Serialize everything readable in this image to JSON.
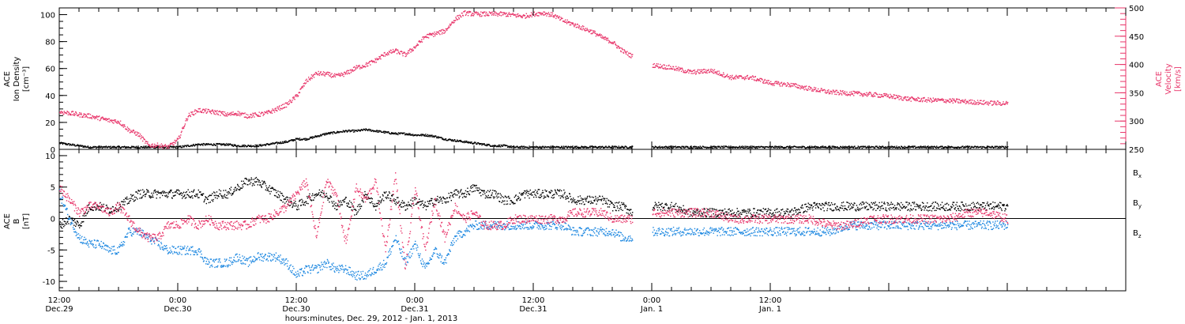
{
  "chart_data": [
    {
      "type": "scatter",
      "panel": "top",
      "ylabel_lines": [
        "ACE",
        "Ion Density",
        "[cm⁻³]"
      ],
      "ylabel_right_lines": [
        "ACE",
        "Velocity",
        "[km/s]"
      ],
      "ylim": [
        0,
        105
      ],
      "ylim_right": [
        250,
        500
      ],
      "yticks_left": [
        "0",
        "20",
        "40",
        "60",
        "80",
        "100"
      ],
      "yticks_right": [
        "250",
        "300",
        "350",
        "400",
        "450",
        "500"
      ],
      "right_axis_color": "#e8356a",
      "gap": [
        58,
        60
      ],
      "series": [
        {
          "name": "Ion Density",
          "axis": "left",
          "color": "#000000",
          "x": [
            0,
            1,
            2,
            3,
            4,
            5,
            6,
            7,
            8,
            9,
            10,
            11,
            12,
            13,
            14,
            15,
            16,
            17,
            18,
            19,
            20,
            21,
            22,
            23,
            24,
            25,
            26,
            27,
            28,
            29,
            30,
            31,
            32,
            33,
            34,
            35,
            36,
            37,
            38,
            39,
            40,
            41,
            42,
            43,
            44,
            45,
            46,
            47,
            48,
            49,
            50,
            51,
            52,
            53,
            54,
            55,
            56,
            57,
            58,
            60,
            62,
            66,
            70,
            74,
            78,
            82,
            86,
            90,
            94,
            96
          ],
          "y": [
            5,
            4,
            3,
            2,
            2,
            2,
            2,
            2,
            2,
            2,
            2,
            2,
            2,
            3,
            4,
            4,
            4,
            4,
            3,
            3,
            3,
            4,
            5,
            6,
            8,
            8,
            10,
            12,
            13,
            14,
            14,
            15,
            14,
            13,
            12,
            12,
            11,
            11,
            10,
            8,
            7,
            6,
            5,
            4,
            3,
            3,
            2,
            2,
            2,
            2,
            2,
            2,
            2,
            2,
            2,
            2,
            2,
            2,
            2,
            2,
            2,
            2,
            2,
            2,
            2,
            2,
            2,
            2,
            2,
            2
          ]
        },
        {
          "name": "Velocity",
          "axis": "right",
          "color": "#e8356a",
          "x": [
            0,
            1,
            2,
            3,
            4,
            5,
            6,
            7,
            8,
            9,
            10,
            11,
            12,
            13,
            14,
            15,
            16,
            17,
            18,
            19,
            20,
            21,
            22,
            23,
            24,
            25,
            26,
            27,
            28,
            29,
            30,
            31,
            32,
            33,
            34,
            35,
            36,
            37,
            38,
            39,
            40,
            41,
            42,
            43,
            44,
            45,
            46,
            47,
            48,
            49,
            50,
            51,
            52,
            53,
            54,
            55,
            56,
            57,
            58,
            60,
            62,
            64,
            66,
            68,
            70,
            72,
            74,
            76,
            78,
            80,
            82,
            84,
            86,
            88,
            90,
            92,
            94,
            96
          ],
          "y": [
            317,
            315,
            312,
            310,
            306,
            302,
            300,
            285,
            277,
            258,
            258,
            255,
            268,
            310,
            320,
            318,
            316,
            312,
            315,
            310,
            312,
            315,
            322,
            330,
            345,
            372,
            385,
            384,
            380,
            385,
            395,
            400,
            408,
            420,
            425,
            418,
            432,
            450,
            455,
            460,
            480,
            492,
            490,
            490,
            490,
            490,
            488,
            486,
            490,
            492,
            488,
            478,
            472,
            465,
            458,
            448,
            440,
            425,
            415,
            400,
            395,
            387,
            390,
            378,
            378,
            368,
            365,
            358,
            352,
            350,
            348,
            345,
            340,
            338,
            337,
            335,
            333,
            332
          ]
        }
      ]
    },
    {
      "type": "scatter",
      "panel": "bottom",
      "ylabel_lines": [
        "ACE",
        "B",
        "[nT]"
      ],
      "ylim": [
        -11.5,
        11
      ],
      "yticks": [
        "-10",
        "-5",
        "0",
        "5",
        "10"
      ],
      "zero_line": true,
      "gap": [
        58,
        60
      ],
      "legend_position": "right",
      "series": [
        {
          "name": "Bx",
          "label": "B",
          "sub": "x",
          "color": "#000000",
          "x": [
            0,
            1,
            2,
            3,
            4,
            5,
            6,
            7,
            8,
            9,
            10,
            11,
            12,
            13,
            14,
            15,
            16,
            17,
            18,
            19,
            20,
            21,
            22,
            23,
            24,
            25,
            26,
            27,
            28,
            29,
            30,
            31,
            32,
            33,
            34,
            35,
            36,
            37,
            38,
            39,
            40,
            41,
            42,
            43,
            44,
            45,
            46,
            47,
            48,
            49,
            50,
            51,
            52,
            53,
            54,
            55,
            56,
            57,
            58,
            60,
            62,
            64,
            66,
            68,
            70,
            72,
            74,
            76,
            78,
            80,
            82,
            84,
            86,
            88,
            90,
            92,
            94,
            96
          ],
          "y": [
            -1,
            0,
            -1,
            2,
            2,
            1.5,
            2,
            3,
            4,
            4,
            4,
            4,
            4,
            4,
            4,
            3,
            4,
            4,
            5,
            6,
            6,
            5,
            4,
            3,
            2,
            3,
            4,
            4,
            2,
            3,
            1,
            4,
            2,
            4,
            3,
            2,
            3,
            2,
            3,
            3,
            4,
            4,
            5,
            4,
            4,
            3,
            3,
            4,
            4,
            4,
            4,
            4,
            3,
            3,
            3,
            3,
            2,
            2,
            1,
            2,
            2,
            1,
            1,
            1,
            1,
            1,
            1,
            2,
            2,
            2,
            2,
            2,
            2,
            2,
            2,
            2,
            2,
            2
          ]
        },
        {
          "name": "By",
          "label": "B",
          "sub": "y",
          "color": "#1a86e0",
          "x": [
            0,
            1,
            2,
            3,
            4,
            5,
            6,
            7,
            8,
            9,
            10,
            11,
            12,
            13,
            14,
            15,
            16,
            17,
            18,
            19,
            20,
            21,
            22,
            23,
            24,
            25,
            26,
            27,
            28,
            29,
            30,
            31,
            32,
            33,
            34,
            35,
            36,
            37,
            38,
            39,
            40,
            41,
            42,
            43,
            44,
            45,
            46,
            47,
            48,
            49,
            50,
            51,
            52,
            53,
            54,
            55,
            56,
            57,
            58,
            60,
            62,
            64,
            66,
            68,
            70,
            72,
            74,
            76,
            78,
            80,
            82,
            84,
            86,
            88,
            90,
            92,
            94,
            96
          ],
          "y": [
            4,
            0,
            -3,
            -4,
            -4,
            -5,
            -5,
            -2,
            -2,
            -3,
            -4,
            -5,
            -5,
            -5,
            -5,
            -7,
            -7,
            -7,
            -6,
            -7,
            -6,
            -6,
            -6,
            -7,
            -9,
            -8,
            -8,
            -7,
            -8,
            -8,
            -9,
            -9,
            -8,
            -7,
            -3,
            -7,
            -4,
            -8,
            -5,
            -7,
            -3,
            -2,
            -1,
            -1,
            -1,
            -1,
            -1,
            -1,
            -1,
            -1,
            -1,
            -1,
            -2,
            -2,
            -2,
            -2,
            -2,
            -3,
            -3,
            -2,
            -2,
            -2,
            -2,
            -2,
            -2,
            -2,
            -2,
            -2,
            -2,
            -1,
            -1,
            -1,
            -1,
            -1,
            -1,
            -1,
            -1,
            -1
          ]
        },
        {
          "name": "Bz",
          "label": "B",
          "sub": "z",
          "color": "#e8356a",
          "x": [
            0,
            1,
            2,
            3,
            4,
            5,
            6,
            7,
            8,
            9,
            10,
            11,
            12,
            13,
            14,
            15,
            16,
            17,
            18,
            19,
            20,
            21,
            22,
            23,
            24,
            25,
            26,
            27,
            28,
            29,
            30,
            31,
            32,
            33,
            34,
            35,
            36,
            37,
            38,
            39,
            40,
            41,
            42,
            43,
            44,
            45,
            46,
            47,
            48,
            49,
            50,
            51,
            52,
            53,
            54,
            55,
            56,
            57,
            58,
            60,
            62,
            64,
            66,
            68,
            70,
            72,
            74,
            76,
            78,
            80,
            82,
            84,
            86,
            88,
            90,
            92,
            94,
            96
          ],
          "y": [
            5,
            3,
            1,
            2,
            2,
            1,
            2,
            0,
            -2,
            -3,
            -3,
            -1,
            -1,
            0,
            -1,
            0,
            -1,
            -1,
            -1,
            -1,
            0,
            0,
            1,
            2,
            4,
            6,
            -3,
            6,
            4,
            -4,
            5,
            3,
            6,
            -5,
            7,
            -8,
            5,
            -5,
            3,
            -3,
            2,
            0,
            1,
            -1,
            -1,
            -1,
            0,
            0,
            0,
            0,
            0,
            0,
            1,
            1,
            1,
            1,
            0,
            0,
            0,
            1,
            1,
            1,
            1,
            0,
            0,
            0,
            0,
            0,
            -1,
            -1,
            0,
            0,
            0,
            0,
            0,
            1,
            1,
            0
          ]
        }
      ]
    }
  ],
  "xaxis": {
    "range_hours": [
      0,
      108
    ],
    "ticks": [
      {
        "h": 0,
        "time": "12:00",
        "date": "Dec.29"
      },
      {
        "h": 12,
        "time": "0:00",
        "date": "Dec.30"
      },
      {
        "h": 24,
        "time": "12:00",
        "date": "Dec.30"
      },
      {
        "h": 36,
        "time": "0:00",
        "date": "Dec.31"
      },
      {
        "h": 48,
        "time": "12:00",
        "date": "Dec.31"
      },
      {
        "h": 60,
        "time": "0:00",
        "date": "Jan. 1"
      },
      {
        "h": 72,
        "time": "12:00",
        "date": "Jan. 1"
      }
    ],
    "xlabel": "hours:minutes, Dec. 29, 2012 - Jan.  1, 2013"
  }
}
